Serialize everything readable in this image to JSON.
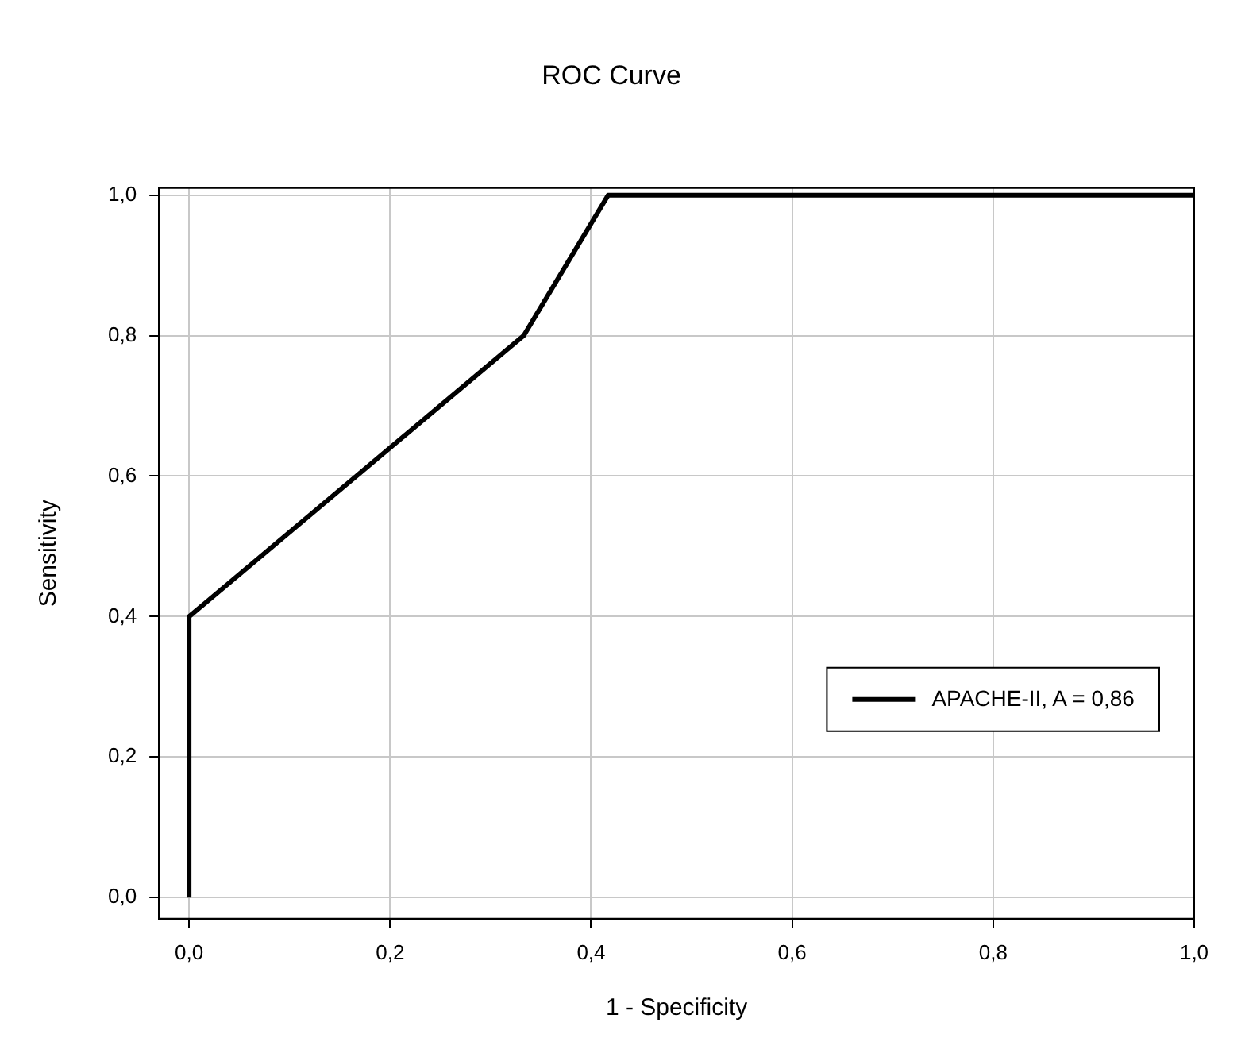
{
  "chart_data": {
    "type": "line",
    "title": "ROC Curve",
    "xlabel": "1 - Specificity",
    "ylabel": "Sensitivity",
    "x": [
      0,
      0,
      0.333,
      0.417,
      1
    ],
    "series": [
      {
        "name": "APACHE-II, A = 0,86",
        "color": "#000000",
        "values": [
          0,
          0.4,
          0.8,
          1,
          1
        ]
      }
    ],
    "xlim": [
      -0.03,
      1
    ],
    "ylim": [
      -0.03,
      1.01
    ],
    "xticks": [
      {
        "value": 0,
        "label": "0,0"
      },
      {
        "value": 0.2,
        "label": "0,2"
      },
      {
        "value": 0.4,
        "label": "0,4"
      },
      {
        "value": 0.6,
        "label": "0,6"
      },
      {
        "value": 0.8,
        "label": "0,8"
      },
      {
        "value": 1,
        "label": "1,0"
      }
    ],
    "yticks": [
      {
        "value": 0,
        "label": "0,0"
      },
      {
        "value": 0.2,
        "label": "0,2"
      },
      {
        "value": 0.4,
        "label": "0,4"
      },
      {
        "value": 0.6,
        "label": "0,6"
      },
      {
        "value": 0.8,
        "label": "0,8"
      },
      {
        "value": 1,
        "label": "1,0"
      }
    ],
    "grid": true,
    "legend": "bottom right",
    "marker": "none",
    "line_style": "solid"
  }
}
